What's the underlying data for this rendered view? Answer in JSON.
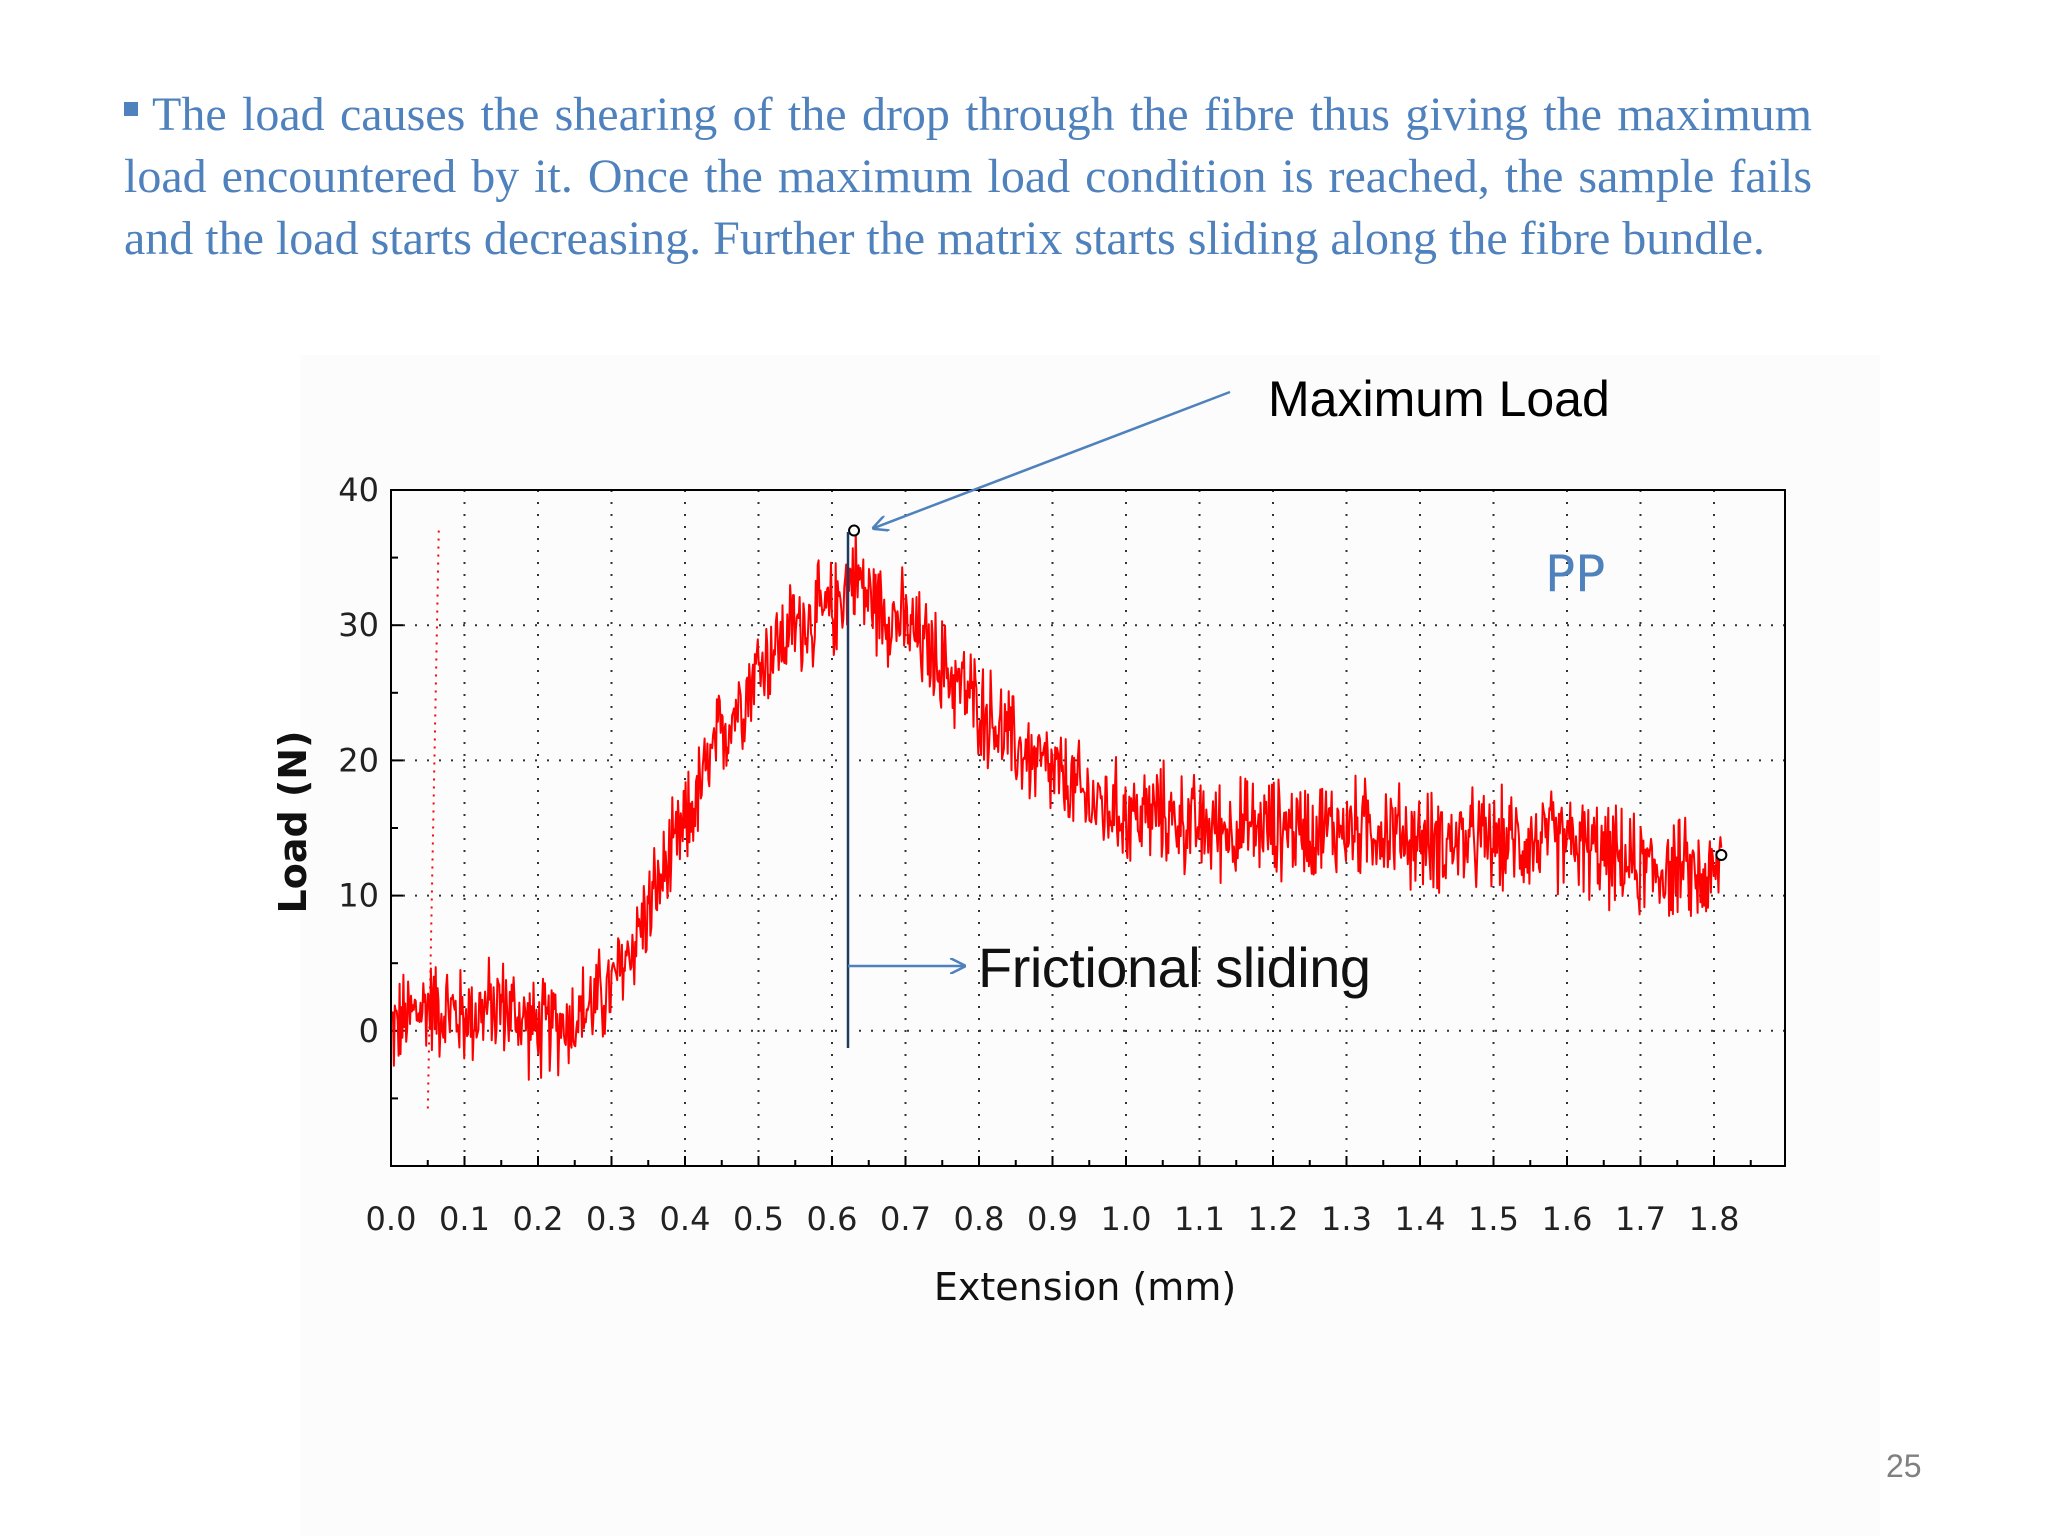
{
  "slide": {
    "paragraph": "The load causes the shearing of the drop through the fibre thus giving the maximum load encountered by it. Once the maximum load condition is reached, the sample fails and the load starts decreasing. Further the matrix starts sliding along the fibre bundle.",
    "page_number": "25"
  },
  "annotations": {
    "max_load": "Maximum Load",
    "frictional_sliding": "Frictional sliding",
    "material": "PP"
  },
  "colors": {
    "series": "#ff0000",
    "annotation": "#4f81bd",
    "text": "#4f81bd"
  },
  "chart_data": {
    "type": "line",
    "title": "",
    "xlabel": "Extension (mm)",
    "ylabel": "Load (N)",
    "xlim": [
      0.0,
      1.9
    ],
    "ylim": [
      -10,
      40
    ],
    "x_ticks": [
      "0.0",
      "0.1",
      "0.2",
      "0.3",
      "0.4",
      "0.5",
      "0.6",
      "0.7",
      "0.8",
      "0.9",
      "1.0",
      "1.1",
      "1.2",
      "1.3",
      "1.4",
      "1.5",
      "1.6",
      "1.7",
      "1.8"
    ],
    "y_ticks": [
      "0",
      "10",
      "20",
      "30",
      "40"
    ],
    "grid": true,
    "series": [
      {
        "name": "PP",
        "x": [
          0.0,
          0.05,
          0.1,
          0.15,
          0.2,
          0.25,
          0.3,
          0.35,
          0.4,
          0.45,
          0.5,
          0.55,
          0.6,
          0.63,
          0.65,
          0.7,
          0.75,
          0.8,
          0.85,
          0.9,
          0.95,
          1.0,
          1.05,
          1.1,
          1.15,
          1.2,
          1.25,
          1.3,
          1.35,
          1.4,
          1.45,
          1.5,
          1.55,
          1.6,
          1.65,
          1.7,
          1.75,
          1.8,
          1.81
        ],
        "y": [
          0,
          2,
          1,
          2,
          0,
          1,
          3,
          9,
          15,
          22,
          27,
          30,
          31,
          34,
          32,
          30,
          27,
          24,
          21,
          19,
          17,
          16,
          16,
          15,
          15,
          15,
          15,
          15,
          15,
          14,
          14,
          14,
          14,
          14,
          13,
          12,
          12,
          11,
          13
        ],
        "noise_amplitude": 3.5
      }
    ],
    "markers": [
      {
        "x": 0.63,
        "y": 37
      },
      {
        "x": 1.81,
        "y": 13
      }
    ]
  }
}
